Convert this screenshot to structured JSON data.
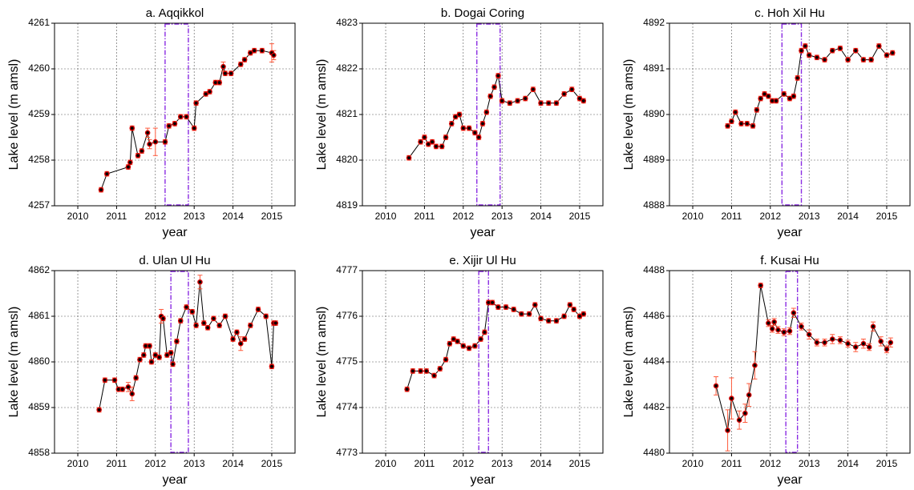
{
  "chart_data": [
    {
      "type": "line",
      "title": "a. Aqqikkol",
      "xlabel": "year",
      "ylabel": "Lake level (m amsl)",
      "x": [
        2010.6,
        2010.75,
        2011.3,
        2011.35,
        2011.4,
        2011.55,
        2011.65,
        2011.8,
        2011.85,
        2012.0,
        2012.25,
        2012.35,
        2012.5,
        2012.65,
        2012.8,
        2013.0,
        2013.05,
        2013.3,
        2013.4,
        2013.55,
        2013.65,
        2013.75,
        2013.8,
        2013.95,
        2014.2,
        2014.3,
        2014.45,
        2014.55,
        2014.75,
        2015.0,
        2015.05
      ],
      "values": [
        4257.35,
        4257.7,
        4257.85,
        4257.95,
        4258.7,
        4258.1,
        4258.2,
        4258.6,
        4258.35,
        4258.4,
        4258.4,
        4258.75,
        4258.8,
        4258.95,
        4258.95,
        4258.7,
        4259.25,
        4259.45,
        4259.5,
        4259.7,
        4259.7,
        4260.05,
        4259.9,
        4259.9,
        4260.1,
        4260.2,
        4260.35,
        4260.4,
        4260.4,
        4260.35,
        4260.3
      ],
      "errors": [
        0.05,
        0.05,
        0.05,
        0.05,
        0.05,
        0.05,
        0.05,
        0.1,
        0.1,
        0.3,
        0.05,
        0.05,
        0.05,
        0.05,
        0.05,
        0.05,
        0.05,
        0.05,
        0.05,
        0.05,
        0.05,
        0.1,
        0.05,
        0.05,
        0.05,
        0.05,
        0.05,
        0.05,
        0.05,
        0.2,
        0.1
      ],
      "color": "#000000",
      "marker_color": "#d40000",
      "error_color": "#ff5a3c",
      "xlim": [
        2009.4,
        2015.6
      ],
      "xticks": [
        2010,
        2011,
        2012,
        2013,
        2014,
        2015
      ],
      "ylim": [
        4257,
        4261
      ],
      "yticks": [
        4257,
        4258,
        4259,
        4260,
        4261
      ],
      "grid": true,
      "highlight_x": [
        2012.25,
        2012.85
      ],
      "highlight_color": "#8a2be2"
    },
    {
      "type": "line",
      "title": "b. Dogai Coring",
      "xlabel": "year",
      "ylabel": "Lake level (m amsl)",
      "x": [
        2010.6,
        2010.9,
        2011.0,
        2011.1,
        2011.2,
        2011.3,
        2011.45,
        2011.55,
        2011.7,
        2011.8,
        2011.9,
        2012.0,
        2012.15,
        2012.3,
        2012.4,
        2012.5,
        2012.6,
        2012.7,
        2012.8,
        2012.9,
        2013.0,
        2013.2,
        2013.4,
        2013.6,
        2013.8,
        2014.0,
        2014.2,
        2014.4,
        2014.6,
        2014.8,
        2015.0,
        2015.1
      ],
      "values": [
        4820.05,
        4820.4,
        4820.5,
        4820.35,
        4820.4,
        4820.3,
        4820.3,
        4820.5,
        4820.8,
        4820.95,
        4821.0,
        4820.7,
        4820.7,
        4820.6,
        4820.5,
        4820.8,
        4821.05,
        4821.4,
        4821.6,
        4821.85,
        4821.3,
        4821.25,
        4821.3,
        4821.35,
        4821.55,
        4821.25,
        4821.25,
        4821.25,
        4821.45,
        4821.55,
        4821.35,
        4821.3
      ],
      "errors": [
        0.05,
        0.05,
        0.05,
        0.05,
        0.05,
        0.05,
        0.05,
        0.05,
        0.05,
        0.05,
        0.05,
        0.05,
        0.05,
        0.05,
        0.05,
        0.05,
        0.05,
        0.05,
        0.05,
        0.05,
        0.05,
        0.05,
        0.05,
        0.05,
        0.05,
        0.05,
        0.05,
        0.05,
        0.05,
        0.05,
        0.05,
        0.05
      ],
      "color": "#000000",
      "marker_color": "#d40000",
      "error_color": "#ff5a3c",
      "xlim": [
        2009.4,
        2015.6
      ],
      "xticks": [
        2010,
        2011,
        2012,
        2013,
        2014,
        2015
      ],
      "ylim": [
        4819,
        4823
      ],
      "yticks": [
        4819,
        4820,
        4821,
        4822,
        4823
      ],
      "grid": true,
      "highlight_x": [
        2012.35,
        2012.95
      ],
      "highlight_color": "#8a2be2"
    },
    {
      "type": "line",
      "title": "c. Hoh Xil Hu",
      "xlabel": "year",
      "ylabel": "Lake level (m amsl)",
      "x": [
        2010.9,
        2011.0,
        2011.1,
        2011.25,
        2011.4,
        2011.55,
        2011.65,
        2011.75,
        2011.85,
        2011.95,
        2012.05,
        2012.15,
        2012.35,
        2012.5,
        2012.6,
        2012.7,
        2012.8,
        2012.9,
        2013.0,
        2013.2,
        2013.4,
        2013.6,
        2013.8,
        2014.0,
        2014.2,
        2014.4,
        2014.6,
        2014.8,
        2015.0,
        2015.15
      ],
      "values": [
        4889.75,
        4889.85,
        4890.05,
        4889.8,
        4889.8,
        4889.75,
        4890.1,
        4890.35,
        4890.45,
        4890.4,
        4890.3,
        4890.3,
        4890.45,
        4890.35,
        4890.4,
        4890.8,
        4891.4,
        4891.5,
        4891.3,
        4891.25,
        4891.2,
        4891.4,
        4891.45,
        4891.2,
        4891.4,
        4891.2,
        4891.2,
        4891.5,
        4891.3,
        4891.35
      ],
      "errors": [
        0.05,
        0.05,
        0.05,
        0.05,
        0.05,
        0.05,
        0.05,
        0.05,
        0.05,
        0.05,
        0.05,
        0.05,
        0.05,
        0.05,
        0.05,
        0.05,
        0.05,
        0.05,
        0.05,
        0.05,
        0.05,
        0.05,
        0.05,
        0.05,
        0.05,
        0.05,
        0.05,
        0.05,
        0.05,
        0.05
      ],
      "color": "#000000",
      "marker_color": "#d40000",
      "error_color": "#ff5a3c",
      "xlim": [
        2009.4,
        2015.6
      ],
      "xticks": [
        2010,
        2011,
        2012,
        2013,
        2014,
        2015
      ],
      "ylim": [
        4888,
        4892
      ],
      "yticks": [
        4888,
        4889,
        4890,
        4891,
        4892
      ],
      "grid": true,
      "highlight_x": [
        2012.3,
        2012.8
      ],
      "highlight_color": "#8a2be2"
    },
    {
      "type": "line",
      "title": "d. Ulan Ul Hu",
      "xlabel": "year",
      "ylabel": "Lake level (m amsl)",
      "x": [
        2010.55,
        2010.7,
        2010.95,
        2011.05,
        2011.15,
        2011.3,
        2011.4,
        2011.5,
        2011.6,
        2011.7,
        2011.75,
        2011.85,
        2011.9,
        2012.0,
        2012.1,
        2012.15,
        2012.2,
        2012.3,
        2012.4,
        2012.45,
        2012.55,
        2012.65,
        2012.8,
        2012.95,
        2013.05,
        2013.15,
        2013.25,
        2013.35,
        2013.5,
        2013.65,
        2013.8,
        2014.0,
        2014.1,
        2014.2,
        2014.3,
        2014.45,
        2014.65,
        2014.85,
        2015.0,
        2015.05,
        2015.1
      ],
      "values": [
        4858.95,
        4859.6,
        4859.6,
        4859.4,
        4859.4,
        4859.45,
        4859.3,
        4859.65,
        4860.05,
        4860.15,
        4860.35,
        4860.35,
        4860.0,
        4860.15,
        4860.1,
        4861.0,
        4860.95,
        4860.15,
        4860.2,
        4859.95,
        4860.45,
        4860.9,
        4861.2,
        4861.1,
        4860.8,
        4861.75,
        4860.85,
        4860.75,
        4860.95,
        4860.8,
        4861.0,
        4860.5,
        4860.65,
        4860.4,
        4860.5,
        4860.8,
        4861.15,
        4861.0,
        4859.9,
        4860.85,
        4860.85
      ],
      "errors": [
        0.05,
        0.05,
        0.05,
        0.05,
        0.05,
        0.1,
        0.15,
        0.05,
        0.05,
        0.05,
        0.05,
        0.05,
        0.05,
        0.05,
        0.05,
        0.15,
        0.05,
        0.05,
        0.05,
        0.05,
        0.05,
        0.05,
        0.05,
        0.05,
        0.05,
        0.15,
        0.05,
        0.05,
        0.05,
        0.05,
        0.05,
        0.05,
        0.05,
        0.15,
        0.05,
        0.05,
        0.05,
        0.05,
        0.05,
        0.05,
        0.05
      ],
      "color": "#000000",
      "marker_color": "#d40000",
      "error_color": "#ff5a3c",
      "xlim": [
        2009.4,
        2015.6
      ],
      "xticks": [
        2010,
        2011,
        2012,
        2013,
        2014,
        2015
      ],
      "ylim": [
        4858,
        4862
      ],
      "yticks": [
        4858,
        4859,
        4860,
        4861,
        4862
      ],
      "grid": true,
      "highlight_x": [
        2012.4,
        2012.85
      ],
      "highlight_color": "#8a2be2"
    },
    {
      "type": "line",
      "title": "e. Xijir Ul Hu",
      "xlabel": "year",
      "ylabel": "Lake level (m amsl)",
      "x": [
        2010.55,
        2010.7,
        2010.9,
        2011.05,
        2011.25,
        2011.4,
        2011.55,
        2011.65,
        2011.75,
        2011.85,
        2012.0,
        2012.15,
        2012.3,
        2012.45,
        2012.55,
        2012.65,
        2012.75,
        2012.9,
        2013.1,
        2013.3,
        2013.5,
        2013.7,
        2013.85,
        2014.0,
        2014.2,
        2014.4,
        2014.6,
        2014.75,
        2014.85,
        2015.0,
        2015.1
      ],
      "values": [
        4774.4,
        4774.8,
        4774.8,
        4774.8,
        4774.7,
        4774.85,
        4775.05,
        4775.4,
        4775.5,
        4775.45,
        4775.35,
        4775.3,
        4775.35,
        4775.5,
        4775.65,
        4776.3,
        4776.3,
        4776.2,
        4776.2,
        4776.15,
        4776.05,
        4776.05,
        4776.25,
        4775.95,
        4775.9,
        4775.9,
        4776.0,
        4776.25,
        4776.15,
        4776.0,
        4776.05
      ],
      "errors": [
        0.05,
        0.05,
        0.05,
        0.05,
        0.05,
        0.05,
        0.05,
        0.05,
        0.05,
        0.05,
        0.05,
        0.05,
        0.05,
        0.05,
        0.05,
        0.05,
        0.05,
        0.05,
        0.05,
        0.05,
        0.05,
        0.05,
        0.05,
        0.05,
        0.05,
        0.05,
        0.05,
        0.05,
        0.05,
        0.05,
        0.05
      ],
      "color": "#000000",
      "marker_color": "#d40000",
      "error_color": "#ff5a3c",
      "xlim": [
        2009.4,
        2015.6
      ],
      "xticks": [
        2010,
        2011,
        2012,
        2013,
        2014,
        2015
      ],
      "ylim": [
        4773,
        4777
      ],
      "yticks": [
        4773,
        4774,
        4775,
        4776,
        4777
      ],
      "grid": true,
      "highlight_x": [
        2012.4,
        2012.65
      ],
      "highlight_color": "#8a2be2"
    },
    {
      "type": "line",
      "title": "f. Kusai Hu",
      "xlabel": "year",
      "ylabel": "Lake level (m amsl)",
      "x": [
        2010.6,
        2010.9,
        2011.0,
        2011.2,
        2011.35,
        2011.45,
        2011.6,
        2011.75,
        2011.95,
        2012.05,
        2012.1,
        2012.2,
        2012.35,
        2012.5,
        2012.6,
        2012.8,
        2013.0,
        2013.2,
        2013.4,
        2013.6,
        2013.8,
        2014.0,
        2014.2,
        2014.4,
        2014.55,
        2014.65,
        2014.85,
        2015.0,
        2015.1
      ],
      "values": [
        4482.95,
        4481.0,
        4482.4,
        4481.45,
        4481.75,
        4482.55,
        4483.85,
        4487.35,
        4485.7,
        4485.45,
        4485.75,
        4485.4,
        4485.3,
        4485.35,
        4486.15,
        4485.55,
        4485.2,
        4484.85,
        4484.85,
        4485.0,
        4484.95,
        4484.8,
        4484.65,
        4484.8,
        4484.65,
        4485.55,
        4484.9,
        4484.55,
        4484.85
      ],
      "errors": [
        0.4,
        0.9,
        0.9,
        0.4,
        0.4,
        0.5,
        0.6,
        0.1,
        0.15,
        0.15,
        0.15,
        0.15,
        0.15,
        0.15,
        0.2,
        0.15,
        0.2,
        0.15,
        0.15,
        0.2,
        0.15,
        0.15,
        0.2,
        0.2,
        0.15,
        0.2,
        0.2,
        0.15,
        0.2
      ],
      "color": "#000000",
      "marker_color": "#d40000",
      "error_color": "#ff5a3c",
      "xlim": [
        2009.4,
        2015.6
      ],
      "xticks": [
        2010,
        2011,
        2012,
        2013,
        2014,
        2015
      ],
      "ylim": [
        4480,
        4488
      ],
      "yticks": [
        4480,
        4482,
        4484,
        4486,
        4488
      ],
      "grid": true,
      "highlight_x": [
        2012.4,
        2012.7
      ],
      "highlight_color": "#8a2be2"
    }
  ]
}
